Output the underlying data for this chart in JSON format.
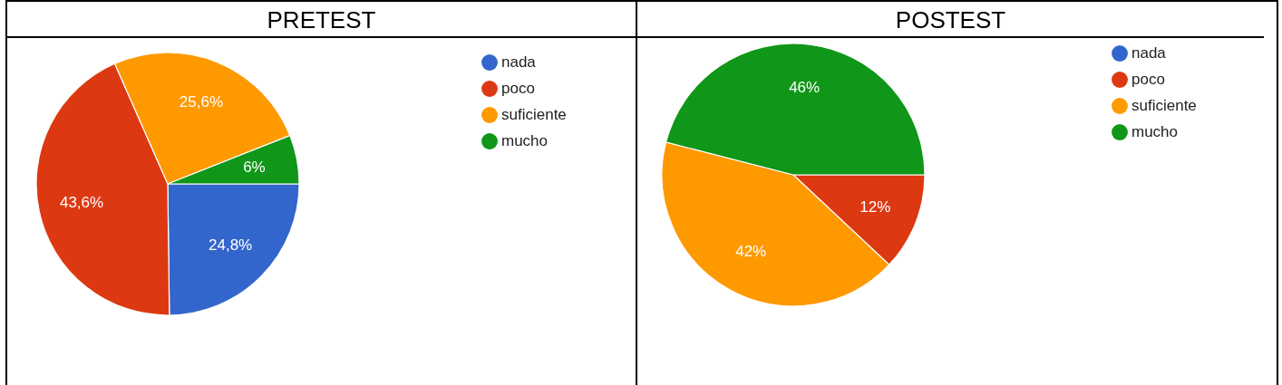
{
  "chart_data": [
    {
      "type": "pie",
      "title": "PRETEST",
      "categories": [
        "nada",
        "poco",
        "suficiente",
        "mucho"
      ],
      "values": [
        24.8,
        43.6,
        25.6,
        6
      ],
      "colors": [
        "#3366cc",
        "#dc3912",
        "#ff9900",
        "#109618"
      ],
      "value_labels": [
        "24,8%",
        "43,6%",
        "25,6%",
        "6%"
      ],
      "legend": "top right"
    },
    {
      "type": "pie",
      "title": "POSTEST",
      "categories": [
        "nada",
        "poco",
        "suficiente",
        "mucho"
      ],
      "values": [
        0,
        12,
        42,
        46
      ],
      "colors": [
        "#3366cc",
        "#dc3912",
        "#ff9900",
        "#109618"
      ],
      "value_labels": [
        null,
        "12%",
        "42%",
        "46%"
      ],
      "legend": "top right"
    }
  ]
}
